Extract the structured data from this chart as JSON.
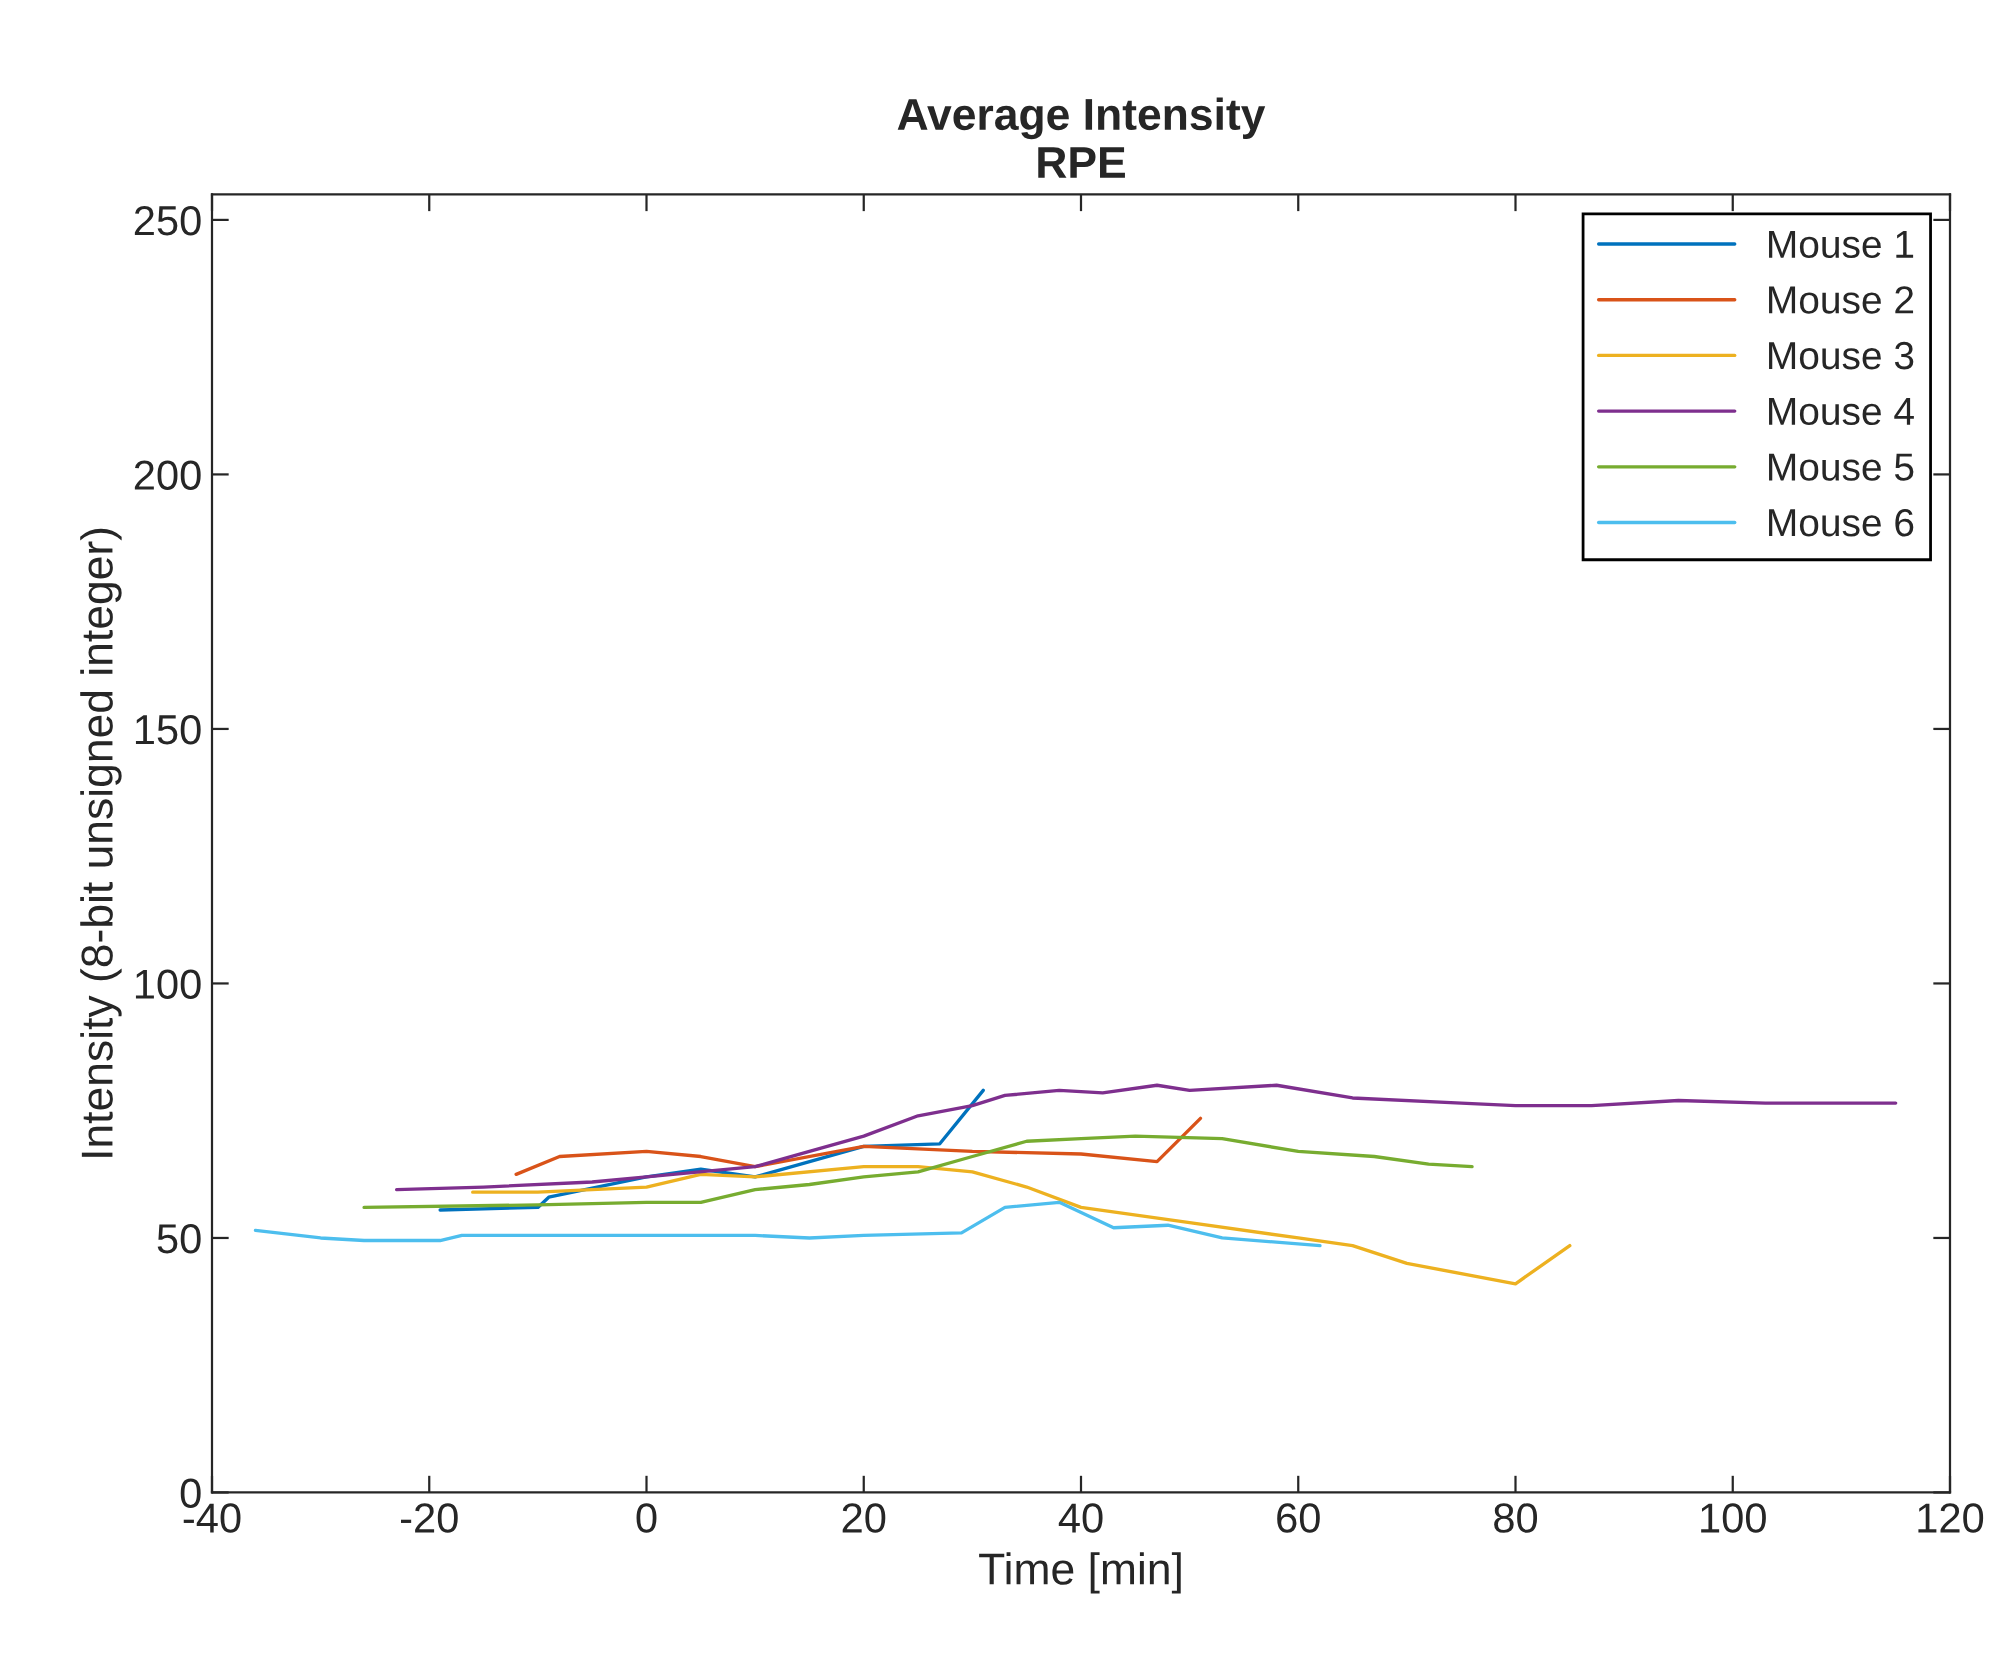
{
  "chart_data": {
    "type": "line",
    "title": "Average Intensity\nRPE",
    "xlabel": "Time [min]",
    "ylabel": "Intensity (8-bit unsigned integer)",
    "xlim": [
      -40,
      120
    ],
    "xticks": [
      -40,
      -20,
      0,
      20,
      40,
      60,
      80,
      100,
      120
    ],
    "ylim": [
      0,
      255
    ],
    "yticks": [
      0,
      50,
      100,
      150,
      200,
      250
    ],
    "grid": false,
    "legend": "top right",
    "marker": "none",
    "line_style": "solid",
    "series": [
      {
        "name": "Mouse 1",
        "color": "#0072bd",
        "x": [
          -19,
          -10,
          -9,
          0,
          5,
          10,
          20,
          27,
          31
        ],
        "values": [
          55.5,
          56,
          58,
          62,
          63.5,
          62,
          68,
          68.5,
          79
        ]
      },
      {
        "name": "Mouse 2",
        "color": "#d95319",
        "x": [
          -12,
          -8,
          0,
          5,
          10,
          20,
          30,
          40,
          47,
          51
        ],
        "values": [
          62.5,
          66,
          67,
          66,
          64,
          68,
          67,
          66.5,
          65,
          73.5
        ]
      },
      {
        "name": "Mouse 3",
        "color": "#edb120",
        "x": [
          -16,
          -10,
          0,
          5,
          10,
          20,
          25,
          30,
          35,
          40,
          50,
          60,
          65,
          70,
          80,
          85
        ],
        "values": [
          59,
          59,
          60,
          62.5,
          62,
          64,
          64,
          63,
          60,
          56,
          53,
          50,
          48.5,
          45,
          41,
          48.5
        ]
      },
      {
        "name": "Mouse 4",
        "color": "#7e2f8e",
        "x": [
          -23,
          -15,
          -5,
          0,
          10,
          15,
          20,
          25,
          30,
          33,
          38,
          42,
          47,
          50,
          58,
          65,
          75,
          80,
          87,
          95,
          103,
          115
        ],
        "values": [
          59.5,
          60,
          61,
          62,
          64,
          67,
          70,
          74,
          76,
          78,
          79,
          78.5,
          80,
          79,
          80,
          77.5,
          76.5,
          76,
          76,
          77,
          76.5,
          76.5
        ]
      },
      {
        "name": "Mouse 5",
        "color": "#77ac30",
        "x": [
          -26,
          -10,
          0,
          5,
          10,
          15,
          20,
          25,
          30,
          35,
          40,
          45,
          53,
          60,
          67,
          72,
          76
        ],
        "values": [
          56,
          56.5,
          57,
          57,
          59.5,
          60.5,
          62,
          63,
          66,
          69,
          69.5,
          70,
          69.5,
          67,
          66,
          64.5,
          64
        ]
      },
      {
        "name": "Mouse 6",
        "color": "#4dbeee",
        "x": [
          -36,
          -30,
          -26,
          -19,
          -17,
          -10,
          0,
          10,
          15,
          20,
          29,
          33,
          38,
          43,
          48,
          53,
          62
        ],
        "values": [
          51.5,
          50,
          49.5,
          49.5,
          50.5,
          50.5,
          50.5,
          50.5,
          50,
          50.5,
          51,
          56,
          57,
          52,
          52.5,
          50,
          48.5
        ]
      }
    ]
  }
}
